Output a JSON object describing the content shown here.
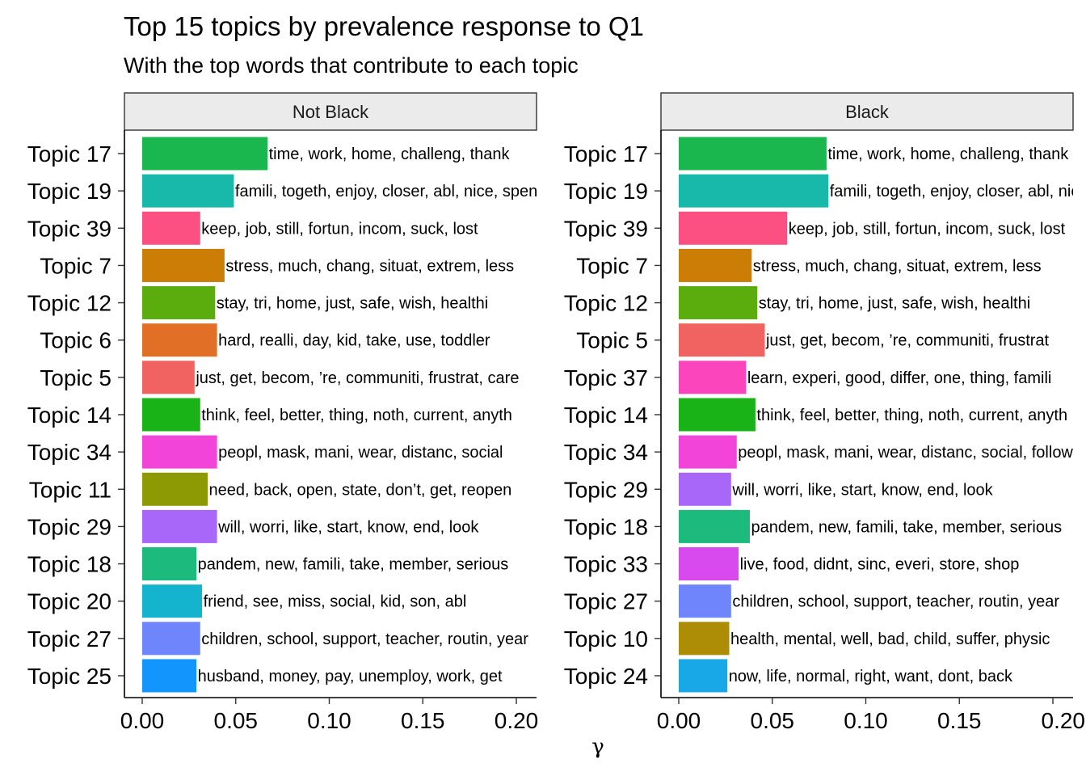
{
  "chart_data": {
    "type": "bar",
    "orientation": "horizontal",
    "title": "Top 15 topics by prevalence response to Q1",
    "subtitle": "With the top words that contribute to each topic",
    "xlabel": "γ",
    "xlim": [
      0,
      0.2
    ],
    "xticks": [
      0.0,
      0.05,
      0.1,
      0.15,
      0.2
    ],
    "xtick_labels": [
      "0.00",
      "0.05",
      "0.10",
      "0.15",
      "0.20"
    ],
    "grid": false,
    "panels": [
      {
        "name": "Not Black",
        "bars": [
          {
            "topic": "Topic 17",
            "value": 0.067,
            "words": "time, work, home, challeng, thank",
            "color": "#1AB74F"
          },
          {
            "topic": "Topic 19",
            "value": 0.049,
            "words": "famili, togeth, enjoy, closer, abl, nice, spend",
            "color": "#18B8AB"
          },
          {
            "topic": "Topic 39",
            "value": 0.031,
            "words": "keep, job, still, fortun, incom, suck, lost",
            "color": "#FC5083"
          },
          {
            "topic": "Topic 7",
            "value": 0.044,
            "words": "stress, much, chang, situat, extrem, less",
            "color": "#CB7D06"
          },
          {
            "topic": "Topic 12",
            "value": 0.039,
            "words": "stay, tri, home, just, safe, wish, healthi",
            "color": "#5BAC0D"
          },
          {
            "topic": "Topic 6",
            "value": 0.04,
            "words": "hard, realli, day, kid, take, use, toddler",
            "color": "#E16F25"
          },
          {
            "topic": "Topic 5",
            "value": 0.028,
            "words": "just, get, becom, ’re, communiti, frustrat, care",
            "color": "#F06361"
          },
          {
            "topic": "Topic 14",
            "value": 0.031,
            "words": "think, feel, better, thing, noth, current, anyth",
            "color": "#19B317"
          },
          {
            "topic": "Topic 34",
            "value": 0.04,
            "words": "peopl, mask, mani, wear, distanc, social",
            "color": "#F244D9"
          },
          {
            "topic": "Topic 11",
            "value": 0.035,
            "words": "need, back, open, state, don’t, get, reopen",
            "color": "#8D9A04"
          },
          {
            "topic": "Topic 29",
            "value": 0.04,
            "words": "will, worri, like, start, know, end, look",
            "color": "#A967FA"
          },
          {
            "topic": "Topic 18",
            "value": 0.029,
            "words": "pandem, new, famili, take, member, serious",
            "color": "#1DBA7E"
          },
          {
            "topic": "Topic 20",
            "value": 0.032,
            "words": "friend, see, miss, social, kid, son, abl",
            "color": "#14B3CE"
          },
          {
            "topic": "Topic 27",
            "value": 0.031,
            "words": "children, school, support, teacher, routin, year",
            "color": "#6F85FB"
          },
          {
            "topic": "Topic 25",
            "value": 0.029,
            "words": "husband, money, pay, unemploy, work, get",
            "color": "#1295FC"
          }
        ]
      },
      {
        "name": "Black",
        "bars": [
          {
            "topic": "Topic 17",
            "value": 0.079,
            "words": "time, work, home, challeng, thank",
            "color": "#1AB74F"
          },
          {
            "topic": "Topic 19",
            "value": 0.08,
            "words": "famili, togeth, enjoy, closer, abl, nice",
            "color": "#18B8AB"
          },
          {
            "topic": "Topic 39",
            "value": 0.058,
            "words": "keep, job, still, fortun, incom, suck, lost",
            "color": "#FC5083"
          },
          {
            "topic": "Topic 7",
            "value": 0.039,
            "words": "stress, much, chang, situat, extrem, less",
            "color": "#CB7D06"
          },
          {
            "topic": "Topic 12",
            "value": 0.042,
            "words": "stay, tri, home, just, safe, wish, healthi",
            "color": "#5BAC0D"
          },
          {
            "topic": "Topic 5",
            "value": 0.046,
            "words": "just, get, becom, ’re, communiti, frustrat",
            "color": "#F06361"
          },
          {
            "topic": "Topic 37",
            "value": 0.036,
            "words": "learn, experi, good, differ, one, thing, famili",
            "color": "#FB45BC"
          },
          {
            "topic": "Topic 14",
            "value": 0.041,
            "words": "think, feel, better, thing, noth, current, anyth",
            "color": "#19B317"
          },
          {
            "topic": "Topic 34",
            "value": 0.031,
            "words": "peopl, mask, mani, wear, distanc, social, follow",
            "color": "#F244D9"
          },
          {
            "topic": "Topic 29",
            "value": 0.028,
            "words": "will, worri, like, start, know, end, look",
            "color": "#A967FA"
          },
          {
            "topic": "Topic 18",
            "value": 0.038,
            "words": "pandem, new, famili, take, member, serious",
            "color": "#1DBA7E"
          },
          {
            "topic": "Topic 33",
            "value": 0.032,
            "words": "live, food, didnt, sinc, everi, store, shop",
            "color": "#D84AEE"
          },
          {
            "topic": "Topic 27",
            "value": 0.028,
            "words": "children, school, support, teacher, routin, year",
            "color": "#6F85FB"
          },
          {
            "topic": "Topic 10",
            "value": 0.027,
            "words": "health, mental, well, bad, child, suffer, physic",
            "color": "#AD8D05"
          },
          {
            "topic": "Topic 24",
            "value": 0.026,
            "words": "now, life, normal, right, want, dont, back",
            "color": "#18A8E8"
          }
        ]
      }
    ]
  }
}
